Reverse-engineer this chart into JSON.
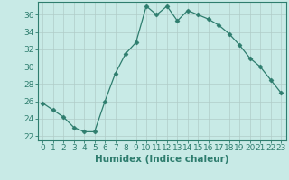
{
  "x": [
    0,
    1,
    2,
    3,
    4,
    5,
    6,
    7,
    8,
    9,
    10,
    11,
    12,
    13,
    14,
    15,
    16,
    17,
    18,
    19,
    20,
    21,
    22,
    23
  ],
  "y": [
    25.8,
    25.0,
    24.2,
    23.0,
    22.5,
    22.5,
    26.0,
    29.2,
    31.5,
    32.8,
    37.0,
    36.0,
    37.0,
    35.3,
    36.5,
    36.0,
    35.5,
    34.8,
    33.8,
    32.5,
    31.0,
    30.0,
    28.5,
    27.0
  ],
  "line_color": "#2e7d6e",
  "marker": "D",
  "markersize": 2.5,
  "linewidth": 0.9,
  "xlabel": "Humidex (Indice chaleur)",
  "ylabel_ticks": [
    22,
    24,
    26,
    28,
    30,
    32,
    34,
    36
  ],
  "ylim": [
    21.5,
    37.5
  ],
  "xlim": [
    -0.5,
    23.5
  ],
  "bg_color": "#c8eae6",
  "grid_color": "#b0ccc8",
  "xlabel_fontsize": 7.5,
  "tick_fontsize": 6.5,
  "tick_color": "#2e7d6e"
}
